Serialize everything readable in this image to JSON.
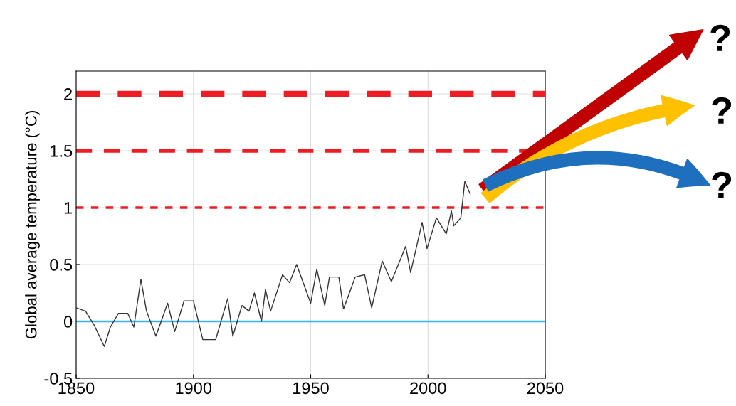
{
  "chart_data": {
    "type": "line",
    "ylabel": "Global average temperature (°C)",
    "xlim": [
      1850,
      2050
    ],
    "xticks": [
      1850,
      1900,
      1950,
      2000,
      2050
    ],
    "ylim": [
      -0.5,
      2.2
    ],
    "yticks": [
      -0.5,
      0,
      0.5,
      1,
      1.5,
      2
    ],
    "grid": true,
    "series": [
      {
        "color": "#333333",
        "x": [
          1850,
          1854,
          1857.6,
          1862,
          1864.6,
          1868,
          1872,
          1874.6,
          1877.6,
          1880,
          1884,
          1889,
          1892,
          1896,
          1900,
          1904,
          1909.5,
          1914.6,
          1916.8,
          1920.7,
          1923.7,
          1926,
          1929,
          1930.7,
          1932.9,
          1938,
          1941,
          1944,
          1950,
          1952.6,
          1956,
          1958,
          1962,
          1964,
          1969,
          1973,
          1976,
          1980.5,
          1984.4,
          1990.5,
          1992.6,
          1997.5,
          1999.6,
          2003.6,
          2007.8,
          2010,
          2011,
          2014,
          2015.7,
          2018
        ],
        "values": [
          0.12,
          0.09,
          -0.03,
          -0.22,
          -0.05,
          0.07,
          0.07,
          -0.05,
          0.37,
          0.09,
          -0.13,
          0.16,
          -0.09,
          0.18,
          0.18,
          -0.16,
          -0.16,
          0.2,
          -0.13,
          0.14,
          0.09,
          0.25,
          0,
          0.28,
          0.09,
          0.41,
          0.34,
          0.5,
          0.16,
          0.46,
          0.14,
          0.39,
          0.39,
          0.11,
          0.39,
          0.41,
          0.12,
          0.53,
          0.35,
          0.66,
          0.43,
          0.87,
          0.64,
          0.91,
          0.77,
          0.97,
          0.84,
          0.91,
          1.23,
          1.12
        ]
      }
    ],
    "ref_lines": [
      {
        "axis": "y",
        "value": 2,
        "color": "#ee1c25",
        "line_style": "dashed"
      },
      {
        "axis": "y",
        "value": 1.5,
        "color": "#ee1c25",
        "line_style": "dashed"
      },
      {
        "axis": "y",
        "value": 1,
        "color": "#ee1c25",
        "line_style": "dashed"
      },
      {
        "axis": "y",
        "value": 0,
        "color": "#3ab4ea",
        "line_style": "solid"
      }
    ],
    "annotations": [
      "?",
      "?",
      "?"
    ]
  }
}
